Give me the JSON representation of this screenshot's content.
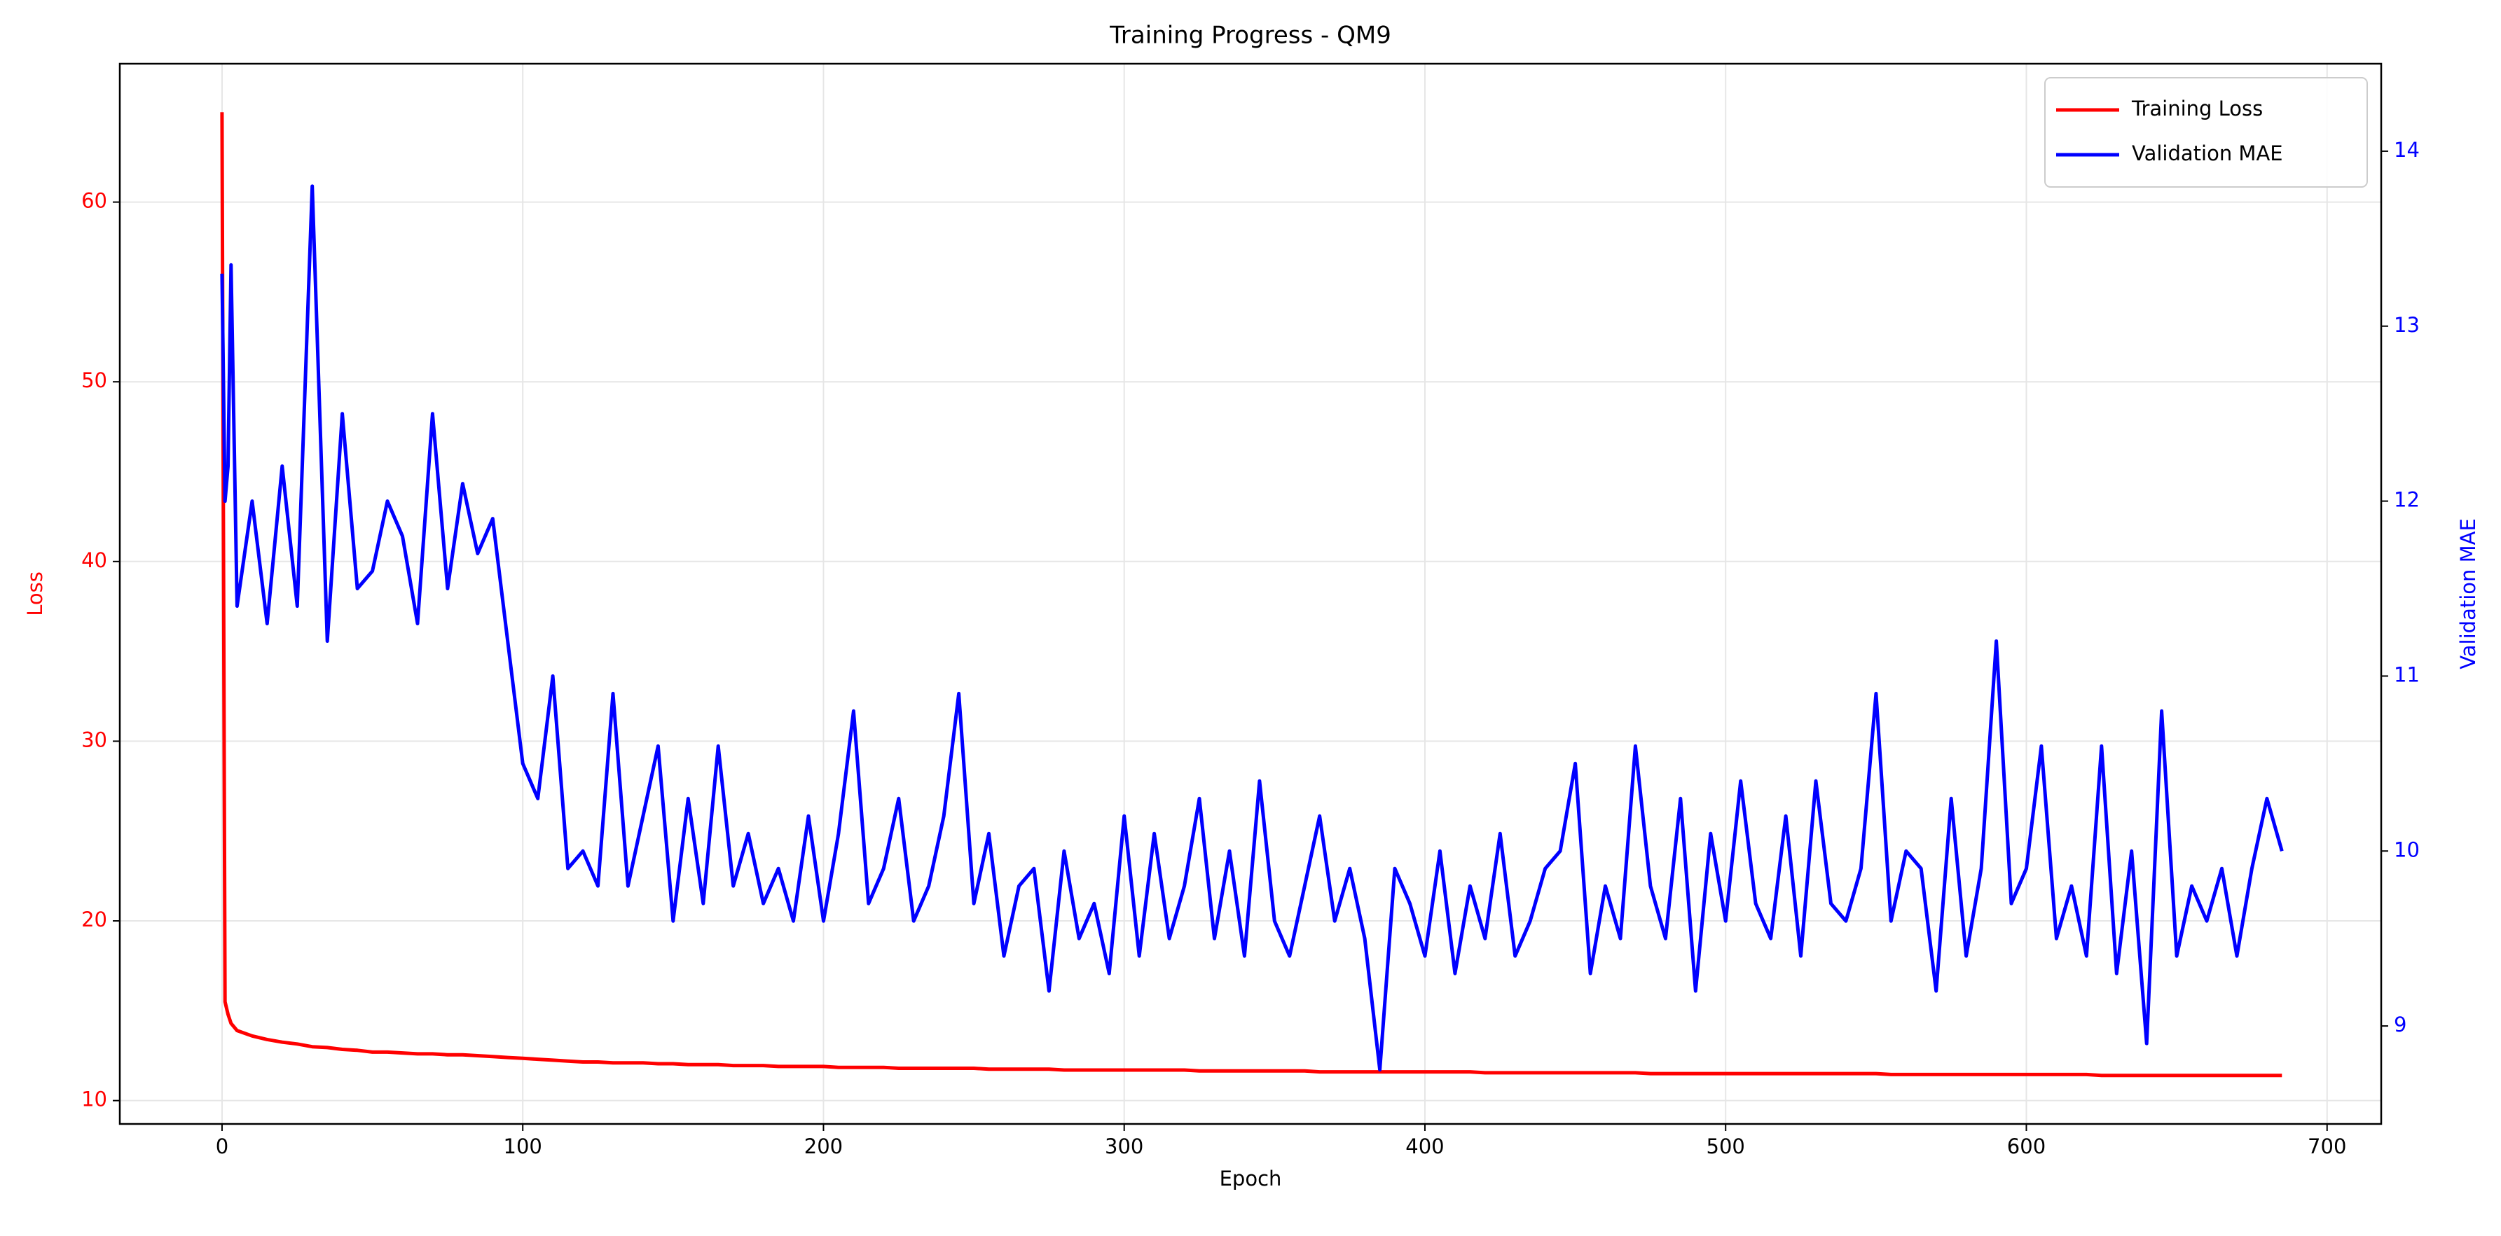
{
  "chart_data": {
    "type": "line",
    "title": "Training Progress - QM9",
    "xlabel": "Epoch",
    "ylabel": "Loss",
    "y2label": "Validation MAE",
    "x": [
      0,
      1,
      2,
      3,
      5,
      10,
      15,
      20,
      25,
      30,
      35,
      40,
      45,
      50,
      55,
      60,
      65,
      70,
      75,
      80,
      85,
      90,
      95,
      100,
      105,
      110,
      115,
      120,
      125,
      130,
      135,
      140,
      145,
      150,
      155,
      160,
      165,
      170,
      175,
      180,
      185,
      190,
      195,
      200,
      205,
      210,
      215,
      220,
      225,
      230,
      235,
      240,
      245,
      250,
      255,
      260,
      265,
      270,
      275,
      280,
      285,
      290,
      295,
      300,
      305,
      310,
      315,
      320,
      325,
      330,
      335,
      340,
      345,
      350,
      355,
      360,
      365,
      370,
      375,
      380,
      385,
      390,
      395,
      400,
      405,
      410,
      415,
      420,
      425,
      430,
      435,
      440,
      445,
      450,
      455,
      460,
      465,
      470,
      475,
      480,
      485,
      490,
      495,
      500,
      505,
      510,
      515,
      520,
      525,
      530,
      535,
      540,
      545,
      550,
      555,
      560,
      565,
      570,
      575,
      580,
      585,
      590,
      595,
      600,
      605,
      610,
      615,
      620,
      625,
      630,
      635,
      640,
      645,
      650,
      655,
      660,
      665,
      670,
      675,
      680,
      685
    ],
    "series": [
      {
        "name": "Training Loss",
        "color": "#ff0000",
        "axis": "y",
        "values": [
          65,
          15.5,
          14.8,
          14.3,
          13.9,
          13.6,
          13.4,
          13.25,
          13.15,
          13.0,
          12.95,
          12.85,
          12.8,
          12.7,
          12.7,
          12.65,
          12.6,
          12.6,
          12.55,
          12.55,
          12.5,
          12.45,
          12.4,
          12.35,
          12.3,
          12.25,
          12.2,
          12.15,
          12.15,
          12.1,
          12.1,
          12.1,
          12.05,
          12.05,
          12.0,
          12.0,
          12.0,
          11.95,
          11.95,
          11.95,
          11.9,
          11.9,
          11.9,
          11.9,
          11.85,
          11.85,
          11.85,
          11.85,
          11.8,
          11.8,
          11.8,
          11.8,
          11.8,
          11.8,
          11.75,
          11.75,
          11.75,
          11.75,
          11.75,
          11.7,
          11.7,
          11.7,
          11.7,
          11.7,
          11.7,
          11.7,
          11.7,
          11.7,
          11.65,
          11.65,
          11.65,
          11.65,
          11.65,
          11.65,
          11.65,
          11.65,
          11.6,
          11.6,
          11.6,
          11.6,
          11.6,
          11.6,
          11.6,
          11.6,
          11.6,
          11.6,
          11.6,
          11.55,
          11.55,
          11.55,
          11.55,
          11.55,
          11.55,
          11.55,
          11.55,
          11.55,
          11.55,
          11.55,
          11.5,
          11.5,
          11.5,
          11.5,
          11.5,
          11.5,
          11.5,
          11.5,
          11.5,
          11.5,
          11.5,
          11.5,
          11.5,
          11.5,
          11.5,
          11.5,
          11.45,
          11.45,
          11.45,
          11.45,
          11.45,
          11.45,
          11.45,
          11.45,
          11.45,
          11.45,
          11.45,
          11.45,
          11.45,
          11.45,
          11.4,
          11.4,
          11.4,
          11.4,
          11.4,
          11.4,
          11.4,
          11.4,
          11.4,
          11.4,
          11.4,
          11.4,
          11.4
        ]
      },
      {
        "name": "Validation MAE",
        "color": "#0000ff",
        "axis": "y2",
        "values": [
          13.3,
          12.0,
          12.2,
          13.35,
          11.4,
          12.0,
          11.3,
          12.2,
          11.4,
          13.8,
          11.2,
          12.5,
          11.5,
          11.6,
          12.0,
          11.8,
          11.3,
          12.5,
          11.5,
          12.1,
          11.7,
          11.9,
          11.2,
          10.5,
          10.3,
          11.0,
          9.9,
          10.0,
          9.8,
          10.9,
          9.8,
          10.2,
          10.6,
          9.6,
          10.3,
          9.7,
          10.6,
          9.8,
          10.1,
          9.7,
          9.9,
          9.6,
          10.2,
          9.6,
          10.1,
          10.8,
          9.7,
          9.9,
          10.3,
          9.6,
          9.8,
          10.2,
          10.9,
          9.7,
          10.1,
          9.4,
          9.8,
          9.9,
          9.2,
          10.0,
          9.5,
          9.7,
          9.3,
          10.2,
          9.4,
          10.1,
          9.5,
          9.8,
          10.3,
          9.5,
          10.0,
          9.4,
          10.4,
          9.6,
          9.4,
          9.8,
          10.2,
          9.6,
          9.9,
          9.5,
          8.75,
          9.9,
          9.7,
          9.4,
          10.0,
          9.3,
          9.8,
          9.5,
          10.1,
          9.4,
          9.6,
          9.9,
          10.0,
          10.5,
          9.3,
          9.8,
          9.5,
          10.6,
          9.8,
          9.5,
          10.3,
          9.2,
          10.1,
          9.6,
          10.4,
          9.7,
          9.5,
          10.2,
          9.4,
          10.4,
          9.7,
          9.6,
          9.9,
          10.9,
          9.6,
          10.0,
          9.9,
          9.2,
          10.3,
          9.4,
          9.9,
          11.2,
          9.7,
          9.9,
          10.6,
          9.5,
          9.8,
          9.4,
          10.6,
          9.3,
          10.0,
          8.9,
          10.8,
          9.4,
          9.8,
          9.6,
          9.9,
          9.4,
          9.9,
          10.3,
          10.0
        ]
      }
    ],
    "xlim": [
      -34,
      718
    ],
    "xticks": [
      0,
      100,
      200,
      300,
      400,
      500,
      600,
      700
    ],
    "ylim": [
      8.7,
      67.7
    ],
    "yticks": [
      10,
      20,
      30,
      40,
      50,
      60
    ],
    "y2lim": [
      8.44,
      14.5
    ],
    "y2ticks": [
      9,
      10,
      11,
      12,
      13,
      14
    ],
    "grid": true,
    "legend": "upper right"
  }
}
